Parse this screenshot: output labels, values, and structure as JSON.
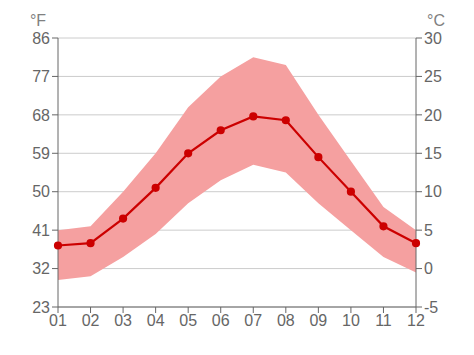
{
  "chart_data": {
    "type": "line",
    "categories": [
      "01",
      "02",
      "03",
      "04",
      "05",
      "06",
      "07",
      "08",
      "09",
      "10",
      "11",
      "12"
    ],
    "series": [
      {
        "type": "area",
        "color": "#f5a0a0",
        "low": [
          -1.5,
          -1.0,
          1.5,
          4.5,
          8.5,
          11.5,
          13.5,
          12.5,
          8.5,
          5.0,
          1.5,
          -0.5
        ],
        "high": [
          5.0,
          5.5,
          10.0,
          15.0,
          21.0,
          25.0,
          27.5,
          26.5,
          20.0,
          14.0,
          8.0,
          5.0
        ]
      },
      {
        "type": "line",
        "color": "#cc0000",
        "marker": "circle",
        "values": [
          3.0,
          3.3,
          6.5,
          10.5,
          15.0,
          18.0,
          19.8,
          19.3,
          14.5,
          10.0,
          5.5,
          3.3
        ]
      }
    ],
    "ylim": [
      -5,
      30
    ],
    "yticks": [
      -5,
      0,
      5,
      10,
      15,
      20,
      25,
      30
    ],
    "y2lim": [
      23,
      86
    ],
    "y2ticks": [
      23,
      32,
      41,
      50,
      59,
      68,
      77,
      86
    ],
    "y_label": "°C",
    "y2_label": "°F",
    "grid": true
  }
}
